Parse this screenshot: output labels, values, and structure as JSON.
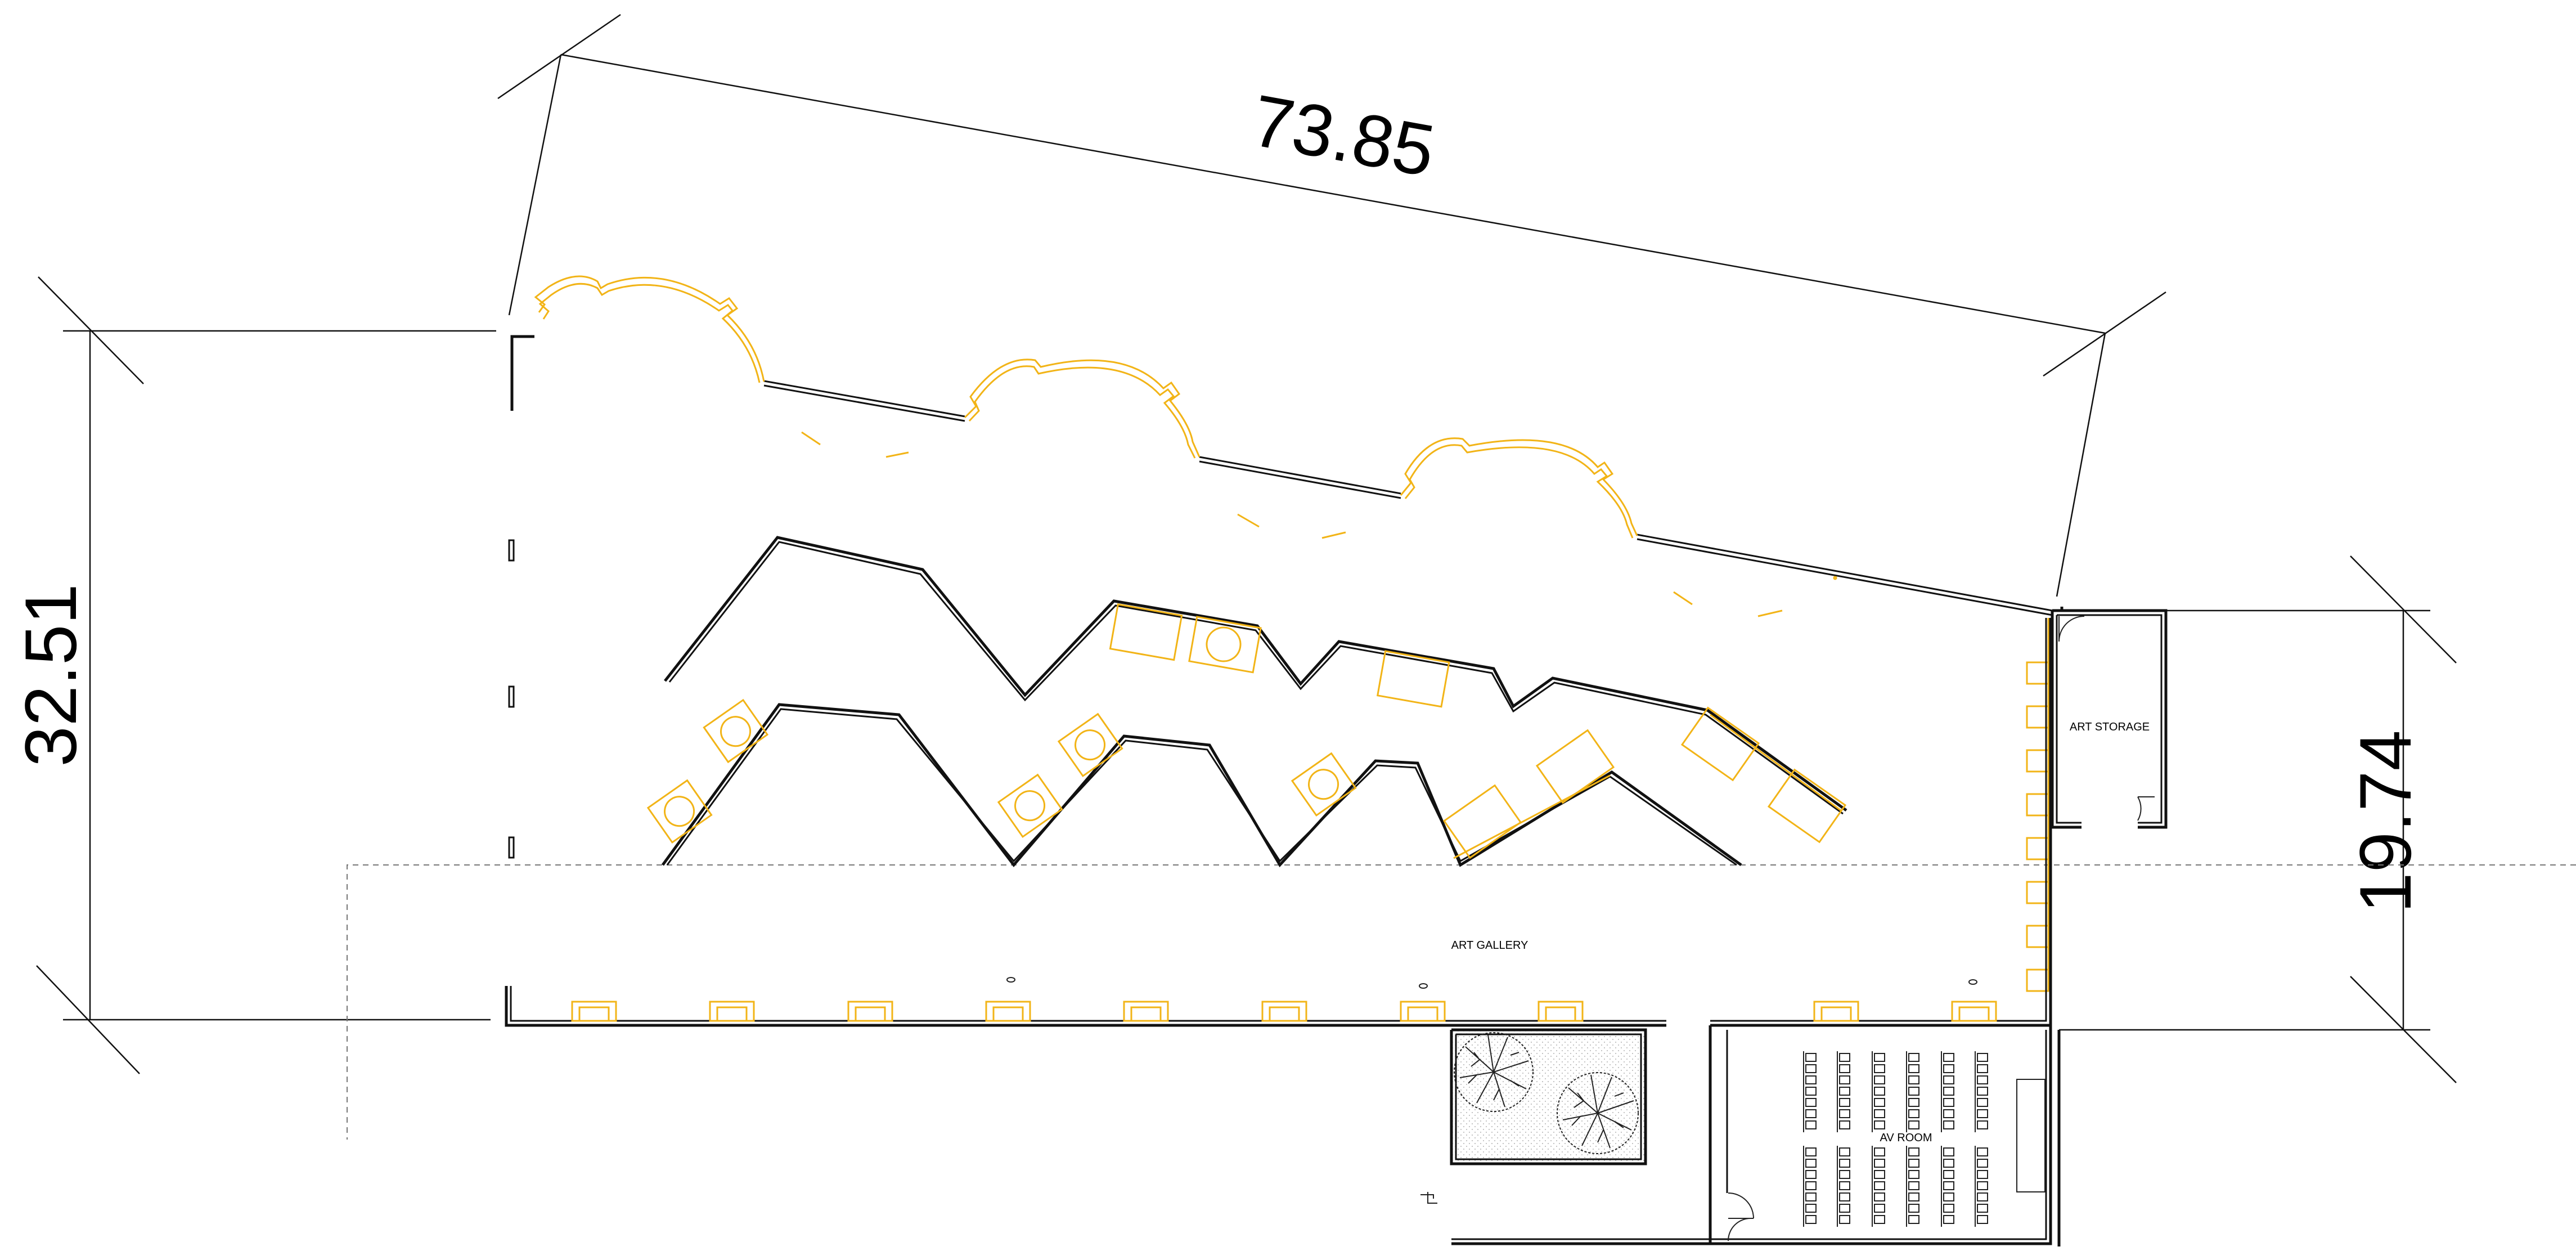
{
  "dimensions": {
    "top": "73.85",
    "left": "32.51",
    "right": "19.74"
  },
  "rooms": {
    "art_storage": "ART STORAGE",
    "art_gallery": "ART GALLERY",
    "av_room": "AV ROOM"
  },
  "colors": {
    "linework": "#111111",
    "display_elements": "#f2b417"
  }
}
